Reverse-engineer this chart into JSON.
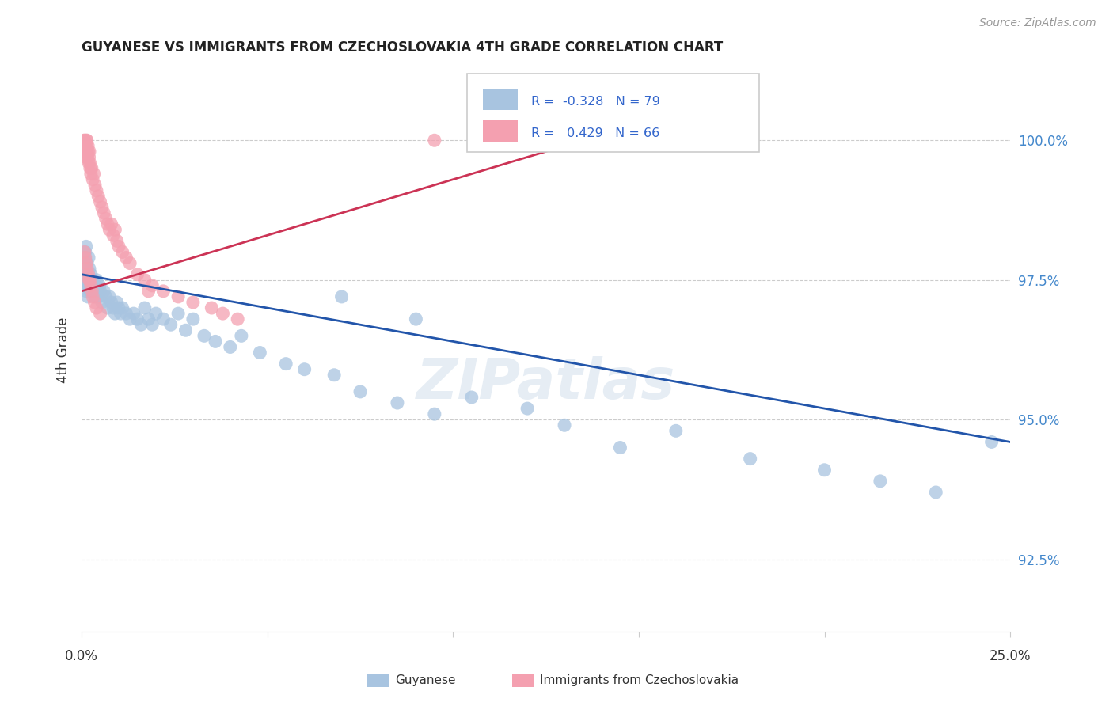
{
  "title": "GUYANESE VS IMMIGRANTS FROM CZECHOSLOVAKIA 4TH GRADE CORRELATION CHART",
  "source": "Source: ZipAtlas.com",
  "ylabel": "4th Grade",
  "yticks": [
    92.5,
    95.0,
    97.5,
    100.0
  ],
  "ytick_labels": [
    "92.5%",
    "95.0%",
    "97.5%",
    "100.0%"
  ],
  "xlim": [
    0.0,
    25.0
  ],
  "ylim": [
    91.2,
    101.3
  ],
  "blue_R": -0.328,
  "blue_N": 79,
  "pink_R": 0.429,
  "pink_N": 66,
  "blue_color": "#a8c4e0",
  "pink_color": "#f4a0b0",
  "blue_line_color": "#2255aa",
  "pink_line_color": "#cc3355",
  "legend_label_blue": "Guyanese",
  "legend_label_pink": "Immigrants from Czechoslovakia",
  "watermark": "ZIPatlas",
  "blue_scatter_x": [
    0.05,
    0.07,
    0.08,
    0.09,
    0.1,
    0.1,
    0.11,
    0.12,
    0.13,
    0.14,
    0.15,
    0.16,
    0.17,
    0.18,
    0.19,
    0.2,
    0.21,
    0.22,
    0.23,
    0.25,
    0.27,
    0.3,
    0.32,
    0.35,
    0.38,
    0.4,
    0.42,
    0.45,
    0.48,
    0.5,
    0.55,
    0.6,
    0.65,
    0.7,
    0.75,
    0.8,
    0.85,
    0.9,
    0.95,
    1.0,
    1.05,
    1.1,
    1.2,
    1.3,
    1.4,
    1.5,
    1.6,
    1.7,
    1.8,
    1.9,
    2.0,
    2.2,
    2.4,
    2.6,
    2.8,
    3.0,
    3.3,
    3.6,
    4.0,
    4.3,
    4.8,
    5.5,
    6.0,
    6.8,
    7.5,
    8.5,
    9.5,
    10.5,
    12.0,
    13.0,
    14.5,
    16.0,
    18.0,
    20.0,
    21.5,
    23.0,
    24.5,
    7.0,
    9.0
  ],
  "blue_scatter_y": [
    97.5,
    97.6,
    97.8,
    97.9,
    98.0,
    97.4,
    97.7,
    98.1,
    97.3,
    97.6,
    97.8,
    97.5,
    97.2,
    97.6,
    97.9,
    97.4,
    97.7,
    97.5,
    97.3,
    97.6,
    97.4,
    97.5,
    97.3,
    97.2,
    97.4,
    97.5,
    97.3,
    97.2,
    97.4,
    97.3,
    97.1,
    97.3,
    97.2,
    97.0,
    97.2,
    97.1,
    97.0,
    96.9,
    97.1,
    97.0,
    96.9,
    97.0,
    96.9,
    96.8,
    96.9,
    96.8,
    96.7,
    97.0,
    96.8,
    96.7,
    96.9,
    96.8,
    96.7,
    96.9,
    96.6,
    96.8,
    96.5,
    96.4,
    96.3,
    96.5,
    96.2,
    96.0,
    95.9,
    95.8,
    95.5,
    95.3,
    95.1,
    95.4,
    95.2,
    94.9,
    94.5,
    94.8,
    94.3,
    94.1,
    93.9,
    93.7,
    94.6,
    97.2,
    96.8
  ],
  "pink_scatter_x": [
    0.05,
    0.06,
    0.07,
    0.08,
    0.09,
    0.1,
    0.1,
    0.11,
    0.12,
    0.13,
    0.14,
    0.15,
    0.16,
    0.17,
    0.18,
    0.19,
    0.2,
    0.21,
    0.22,
    0.23,
    0.25,
    0.27,
    0.3,
    0.33,
    0.36,
    0.4,
    0.45,
    0.5,
    0.55,
    0.6,
    0.65,
    0.7,
    0.75,
    0.8,
    0.85,
    0.9,
    0.95,
    1.0,
    1.1,
    1.2,
    1.3,
    1.5,
    1.7,
    1.9,
    2.2,
    2.6,
    3.0,
    3.5,
    3.8,
    4.2,
    0.08,
    0.1,
    0.12,
    0.15,
    0.18,
    0.2,
    0.22,
    0.25,
    0.28,
    0.3,
    0.35,
    0.4,
    0.5,
    1.8,
    9.5,
    14.5
  ],
  "pink_scatter_y": [
    99.8,
    99.9,
    100.0,
    100.0,
    99.9,
    99.8,
    99.7,
    99.8,
    99.9,
    100.0,
    100.0,
    99.8,
    99.7,
    99.9,
    99.8,
    99.6,
    99.7,
    99.8,
    99.6,
    99.5,
    99.4,
    99.5,
    99.3,
    99.4,
    99.2,
    99.1,
    99.0,
    98.9,
    98.8,
    98.7,
    98.6,
    98.5,
    98.4,
    98.5,
    98.3,
    98.4,
    98.2,
    98.1,
    98.0,
    97.9,
    97.8,
    97.6,
    97.5,
    97.4,
    97.3,
    97.2,
    97.1,
    97.0,
    96.9,
    96.8,
    98.0,
    97.9,
    97.8,
    97.7,
    97.6,
    97.5,
    97.5,
    97.4,
    97.3,
    97.2,
    97.1,
    97.0,
    96.9,
    97.3,
    100.0,
    100.0
  ],
  "blue_line_x": [
    0.0,
    25.0
  ],
  "blue_line_y": [
    97.6,
    94.6
  ],
  "pink_line_x": [
    0.0,
    15.0
  ],
  "pink_line_y": [
    97.3,
    100.3
  ]
}
